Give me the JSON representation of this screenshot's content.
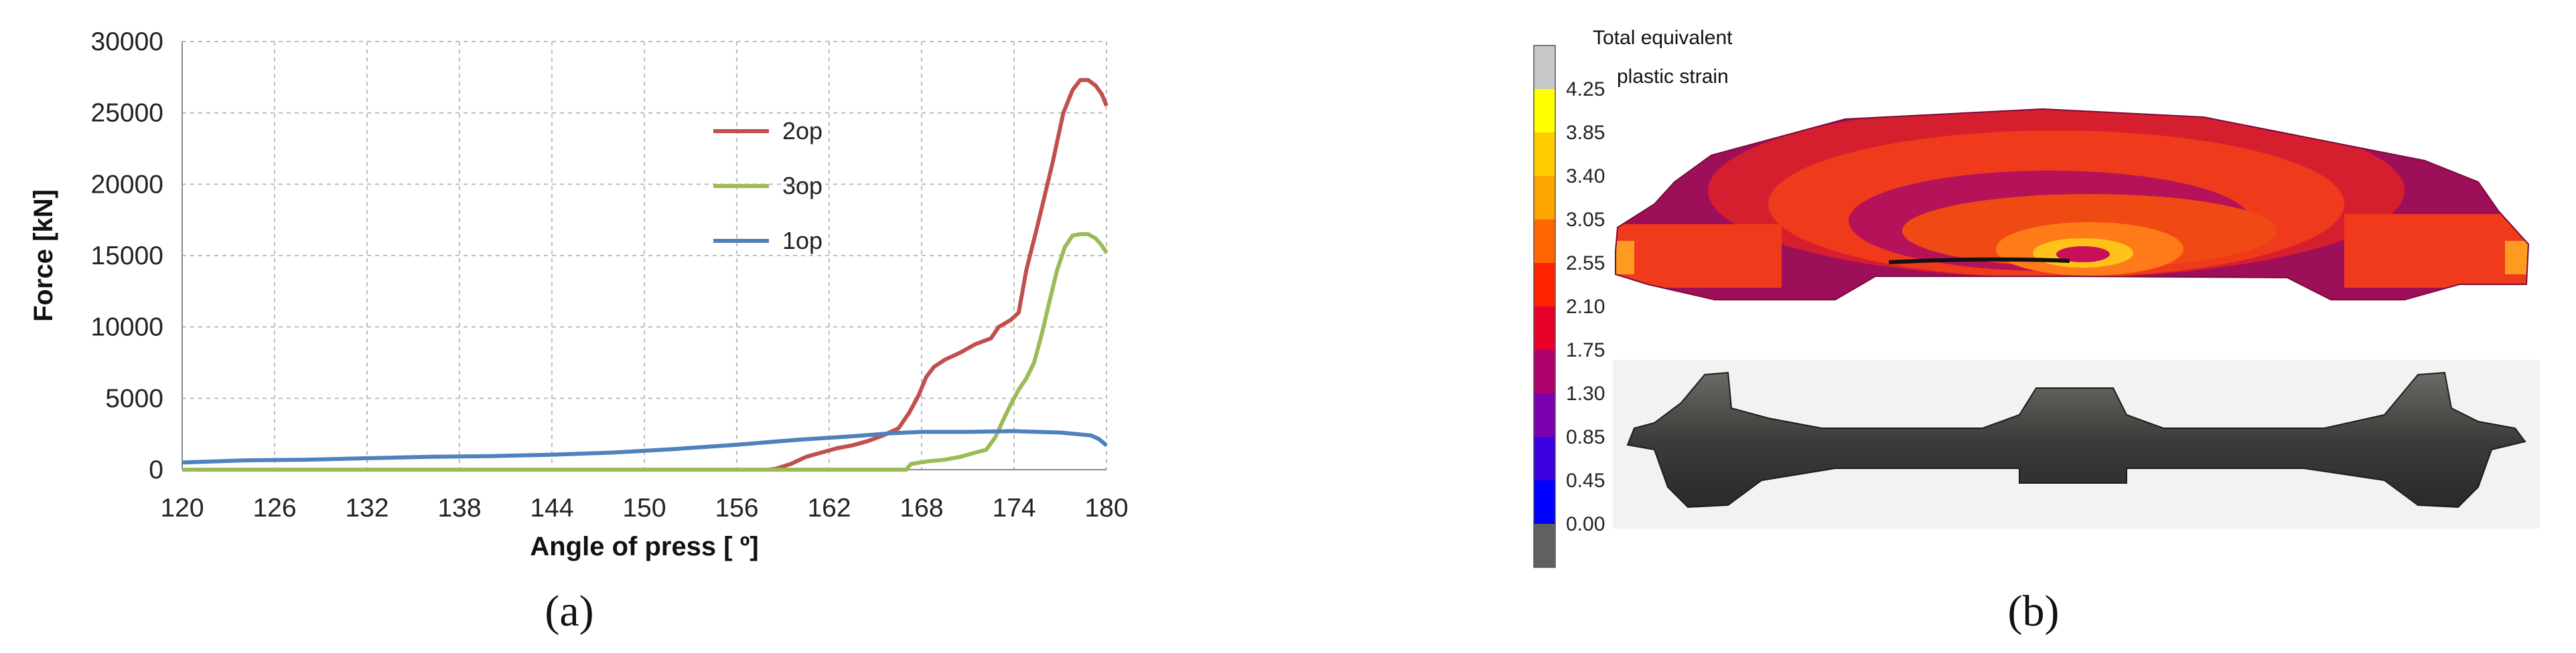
{
  "chart_data": [
    {
      "type": "line",
      "xlabel": "Angle of press [ º]",
      "ylabel": "Force [kN]",
      "xlim": [
        120,
        180
      ],
      "ylim": [
        0,
        30000
      ],
      "x_ticks": [
        "120",
        "126",
        "132",
        "138",
        "144",
        "150",
        "156",
        "162",
        "168",
        "174",
        "180"
      ],
      "y_ticks": [
        "0",
        "5000",
        "10000",
        "15000",
        "20000",
        "25000",
        "30000"
      ],
      "grid": true,
      "legend_position": "top-right",
      "panel_label": "(a)",
      "series": [
        {
          "name": "2op",
          "color": "#c0504d",
          "points": [
            [
              120,
              0
            ],
            [
              158,
              0
            ],
            [
              158.5,
              50
            ],
            [
              159.5,
              400
            ],
            [
              160.5,
              900
            ],
            [
              161.5,
              1200
            ],
            [
              162.5,
              1500
            ],
            [
              163.5,
              1700
            ],
            [
              164.5,
              2000
            ],
            [
              165.5,
              2400
            ],
            [
              166.5,
              2900
            ],
            [
              167.2,
              4000
            ],
            [
              167.8,
              5200
            ],
            [
              168.3,
              6500
            ],
            [
              168.8,
              7200
            ],
            [
              169.5,
              7700
            ],
            [
              170.5,
              8200
            ],
            [
              171.5,
              8800
            ],
            [
              172.5,
              9200
            ],
            [
              173,
              10000
            ],
            [
              173.8,
              10500
            ],
            [
              174.3,
              11000
            ],
            [
              174.8,
              14000
            ],
            [
              175.5,
              17000
            ],
            [
              176.5,
              21500
            ],
            [
              177.2,
              25000
            ],
            [
              177.8,
              26600
            ],
            [
              178.3,
              27300
            ],
            [
              178.8,
              27300
            ],
            [
              179.3,
              26900
            ],
            [
              179.7,
              26300
            ],
            [
              180,
              25500
            ]
          ]
        },
        {
          "name": "3op",
          "color": "#9bbb59",
          "points": [
            [
              120,
              0
            ],
            [
              167,
              0
            ],
            [
              167.3,
              400
            ],
            [
              168.5,
              600
            ],
            [
              169.5,
              700
            ],
            [
              170.5,
              900
            ],
            [
              171.5,
              1200
            ],
            [
              172.2,
              1400
            ],
            [
              172.8,
              2300
            ],
            [
              173.3,
              3500
            ],
            [
              173.8,
              4600
            ],
            [
              174.3,
              5600
            ],
            [
              174.8,
              6400
            ],
            [
              175.3,
              7500
            ],
            [
              175.8,
              9500
            ],
            [
              176.3,
              11800
            ],
            [
              176.8,
              14000
            ],
            [
              177.3,
              15600
            ],
            [
              177.8,
              16400
            ],
            [
              178.3,
              16500
            ],
            [
              178.8,
              16500
            ],
            [
              179.3,
              16200
            ],
            [
              179.7,
              15700
            ],
            [
              180,
              15200
            ]
          ]
        },
        {
          "name": "1op",
          "color": "#4f81bd",
          "points": [
            [
              120,
              500
            ],
            [
              124,
              650
            ],
            [
              128,
              700
            ],
            [
              132,
              800
            ],
            [
              136,
              900
            ],
            [
              140,
              950
            ],
            [
              144,
              1050
            ],
            [
              148,
              1200
            ],
            [
              152,
              1450
            ],
            [
              156,
              1750
            ],
            [
              160,
              2100
            ],
            [
              163,
              2300
            ],
            [
              166,
              2550
            ],
            [
              168,
              2650
            ],
            [
              171,
              2650
            ],
            [
              174,
              2700
            ],
            [
              177,
              2600
            ],
            [
              179,
              2400
            ],
            [
              179.5,
              2150
            ],
            [
              180,
              1700
            ]
          ]
        }
      ]
    },
    {
      "type": "heatmap",
      "panel_label": "(b)",
      "colorbar_title_line1": "Total equivalent",
      "colorbar_title_line2": "plastic strain",
      "colorbar_ticks": [
        "4.25",
        "3.85",
        "3.40",
        "3.05",
        "2.55",
        "2.10",
        "1.75",
        "1.30",
        "0.85",
        "0.45",
        "0.00"
      ],
      "colorbar_colors": [
        "#c8c8c8",
        "#ffff00",
        "#ffcc00",
        "#ffa500",
        "#ff6600",
        "#ff2200",
        "#e6002a",
        "#b0006a",
        "#7a00b0",
        "#3a00e0",
        "#0000ff",
        "#606060"
      ]
    }
  ]
}
